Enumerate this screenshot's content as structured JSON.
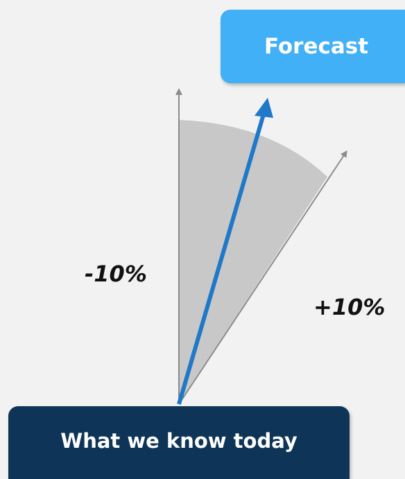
{
  "boxes": {
    "forecast": "Forecast",
    "today": "What we know today"
  },
  "range_labels": {
    "minus": "-10%",
    "plus": "+10%"
  },
  "colors": {
    "forecast_box": "#41b0f7",
    "today_box": "#0e3457",
    "forecast_arrow": "#1f78c8",
    "range_wedge": "#c8c8c8",
    "bound_arrows": "#8c8c8c"
  }
}
